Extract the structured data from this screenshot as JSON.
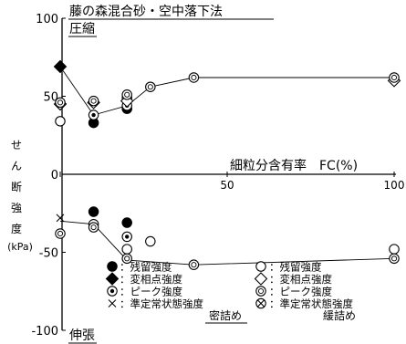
{
  "chart_data": {
    "type": "scatter",
    "title": "藤の森混合砂・空中落下法",
    "xlabel": "細粒分含有率　FC(%)",
    "ylabel": "せん断強度",
    "ylabel_unit": "(kPa)",
    "xlim": [
      0,
      100
    ],
    "ylim": [
      -100,
      100
    ],
    "x_ticks": [
      0,
      50,
      100
    ],
    "y_ticks": [
      -100,
      -50,
      0,
      50,
      100
    ],
    "grid": false,
    "region_labels": {
      "compression": "圧縮",
      "extension": "伸張"
    },
    "legend_placement": "bottom",
    "legend_footers": {
      "dense": "密詰め",
      "loose": "緩詰め"
    },
    "series": [
      {
        "name": "残留強度",
        "marker": "filled-circle",
        "group": "dense",
        "points": [
          [
            10,
            33
          ],
          [
            20,
            42
          ],
          [
            10,
            -24
          ],
          [
            20,
            -31
          ]
        ]
      },
      {
        "name": "変相点強度",
        "marker": "filled-diamond",
        "group": "dense",
        "points": [
          [
            0,
            69
          ]
        ]
      },
      {
        "name": "ピーク強度",
        "marker": "dotted-circle",
        "group": "dense",
        "points": [
          [
            10,
            38
          ],
          [
            20,
            44
          ],
          [
            10,
            -32
          ],
          [
            20,
            -40
          ]
        ]
      },
      {
        "name": "準定常状態強度",
        "marker": "cross",
        "group": "dense",
        "points": [
          [
            0,
            -28
          ]
        ]
      },
      {
        "name": "残留強度",
        "marker": "open-circle",
        "group": "loose",
        "points": [
          [
            0,
            34
          ],
          [
            20,
            49
          ],
          [
            27,
            -43
          ],
          [
            20,
            -48
          ],
          [
            100,
            -48
          ]
        ]
      },
      {
        "name": "変相点強度",
        "marker": "open-diamond",
        "group": "loose",
        "points": [
          [
            0,
            45
          ],
          [
            10,
            46
          ],
          [
            20,
            47
          ],
          [
            100,
            60
          ]
        ]
      },
      {
        "name": "ピーク強度",
        "marker": "double-circle",
        "group": "loose",
        "points": [
          [
            0,
            46
          ],
          [
            10,
            47
          ],
          [
            20,
            51
          ],
          [
            27,
            56
          ],
          [
            40,
            62
          ],
          [
            100,
            62
          ],
          [
            0,
            -38
          ],
          [
            10,
            -34
          ],
          [
            20,
            -54
          ],
          [
            40,
            -58
          ],
          [
            100,
            -54
          ]
        ]
      },
      {
        "name": "準定常状態強度",
        "marker": "circle-x",
        "group": "loose",
        "points": []
      }
    ],
    "connector_lines": [
      [
        [
          0,
          69
        ],
        [
          10,
          38
        ],
        [
          20,
          44
        ],
        [
          27,
          56
        ],
        [
          40,
          62
        ],
        [
          100,
          62
        ]
      ],
      [
        [
          0,
          -30
        ],
        [
          10,
          -32
        ],
        [
          20,
          -55
        ],
        [
          40,
          -58
        ],
        [
          100,
          -54
        ]
      ]
    ]
  },
  "colors": {
    "ink": "#000000",
    "background": "#ffffff"
  }
}
